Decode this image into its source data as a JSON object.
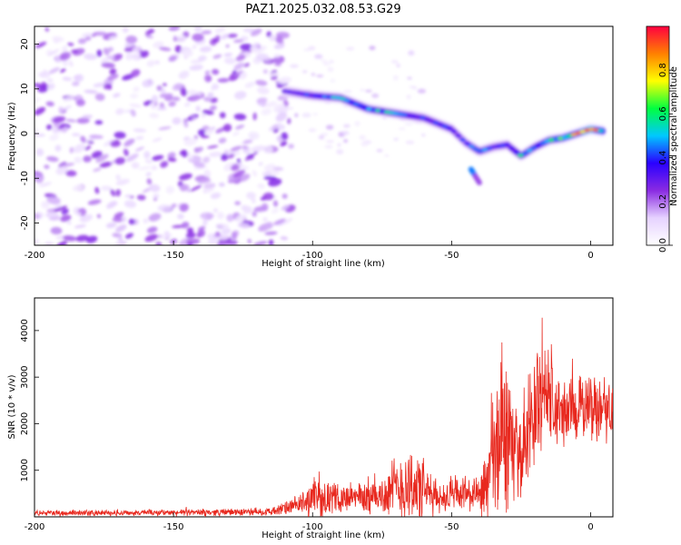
{
  "title": "PAZ1.2025.032.08.53.G29",
  "chart_data": [
    {
      "type": "heatmap",
      "xlabel": "Height of straight line (km)",
      "ylabel": "Frequency (Hz)",
      "xlim": [
        -200,
        8
      ],
      "ylim": [
        -25,
        24
      ],
      "xticks": [
        -200,
        -150,
        -100,
        -50,
        0
      ],
      "yticks": [
        -20,
        -10,
        0,
        10,
        20
      ],
      "colorbar": {
        "label": "Normalized spectral amplitude",
        "range": [
          0,
          1
        ],
        "ticks": [
          "0.0",
          "0.2",
          "0.4",
          "0.6",
          "0.8"
        ],
        "colors": [
          "#ffffff",
          "#e6d2ff",
          "#8a2be2",
          "#2a00ff",
          "#00c8ff",
          "#00ff40",
          "#ffff00",
          "#ff8000",
          "#ff0040"
        ]
      },
      "ridge": [
        {
          "x": -110,
          "f": 9.5,
          "a": 0.3
        },
        {
          "x": -100,
          "f": 8.5,
          "a": 0.4
        },
        {
          "x": -90,
          "f": 8.0,
          "a": 0.45
        },
        {
          "x": -80,
          "f": 5.5,
          "a": 0.5
        },
        {
          "x": -70,
          "f": 4.5,
          "a": 0.45
        },
        {
          "x": -60,
          "f": 3.5,
          "a": 0.4
        },
        {
          "x": -50,
          "f": 1.0,
          "a": 0.4
        },
        {
          "x": -45,
          "f": -2.0,
          "a": 0.35
        },
        {
          "x": -40,
          "f": -4.0,
          "a": 0.45
        },
        {
          "x": -35,
          "f": -3.0,
          "a": 0.35
        },
        {
          "x": -30,
          "f": -2.5,
          "a": 0.4
        },
        {
          "x": -25,
          "f": -5.0,
          "a": 0.5
        },
        {
          "x": -20,
          "f": -3.0,
          "a": 0.45
        },
        {
          "x": -15,
          "f": -1.5,
          "a": 0.5
        },
        {
          "x": -10,
          "f": -1.0,
          "a": 0.6
        },
        {
          "x": -5,
          "f": 0.0,
          "a": 0.75
        },
        {
          "x": 0,
          "f": 1.0,
          "a": 0.9
        },
        {
          "x": 5,
          "f": 0.5,
          "a": 0.6
        }
      ],
      "side_lobe": {
        "x": [
          -43,
          -40
        ],
        "f": [
          -8,
          -11
        ],
        "a": 0.45
      }
    },
    {
      "type": "line",
      "xlabel": "Height of straight line (km)",
      "ylabel": "SNR (10 * v/v)",
      "xlim": [
        -200,
        8
      ],
      "ylim": [
        0,
        4700
      ],
      "xticks": [
        -200,
        -150,
        -100,
        -50,
        0
      ],
      "yticks": [
        1000,
        2000,
        3000,
        4000
      ],
      "series": [
        {
          "color": "#e8281e",
          "envelope": [
            {
              "x": -200,
              "mean": 80,
              "amp": 70
            },
            {
              "x": -150,
              "mean": 90,
              "amp": 80
            },
            {
              "x": -115,
              "mean": 110,
              "amp": 100
            },
            {
              "x": -105,
              "mean": 250,
              "amp": 250
            },
            {
              "x": -100,
              "mean": 400,
              "amp": 500
            },
            {
              "x": -90,
              "mean": 400,
              "amp": 350
            },
            {
              "x": -75,
              "mean": 450,
              "amp": 500
            },
            {
              "x": -70,
              "mean": 600,
              "amp": 900
            },
            {
              "x": -65,
              "mean": 700,
              "amp": 1100
            },
            {
              "x": -60,
              "mean": 550,
              "amp": 800
            },
            {
              "x": -55,
              "mean": 400,
              "amp": 400
            },
            {
              "x": -45,
              "mean": 500,
              "amp": 500
            },
            {
              "x": -40,
              "mean": 400,
              "amp": 400
            },
            {
              "x": -35,
              "mean": 1000,
              "amp": 1800
            },
            {
              "x": -32,
              "mean": 2000,
              "amp": 2600
            },
            {
              "x": -28,
              "mean": 1500,
              "amp": 1300
            },
            {
              "x": -25,
              "mean": 1300,
              "amp": 900
            },
            {
              "x": -20,
              "mean": 2300,
              "amp": 1800
            },
            {
              "x": -17,
              "mean": 2800,
              "amp": 1700
            },
            {
              "x": -12,
              "mean": 2200,
              "amp": 1000
            },
            {
              "x": -5,
              "mean": 2300,
              "amp": 800
            },
            {
              "x": 0,
              "mean": 2400,
              "amp": 900
            },
            {
              "x": 8,
              "mean": 2300,
              "amp": 800
            }
          ]
        }
      ]
    }
  ]
}
